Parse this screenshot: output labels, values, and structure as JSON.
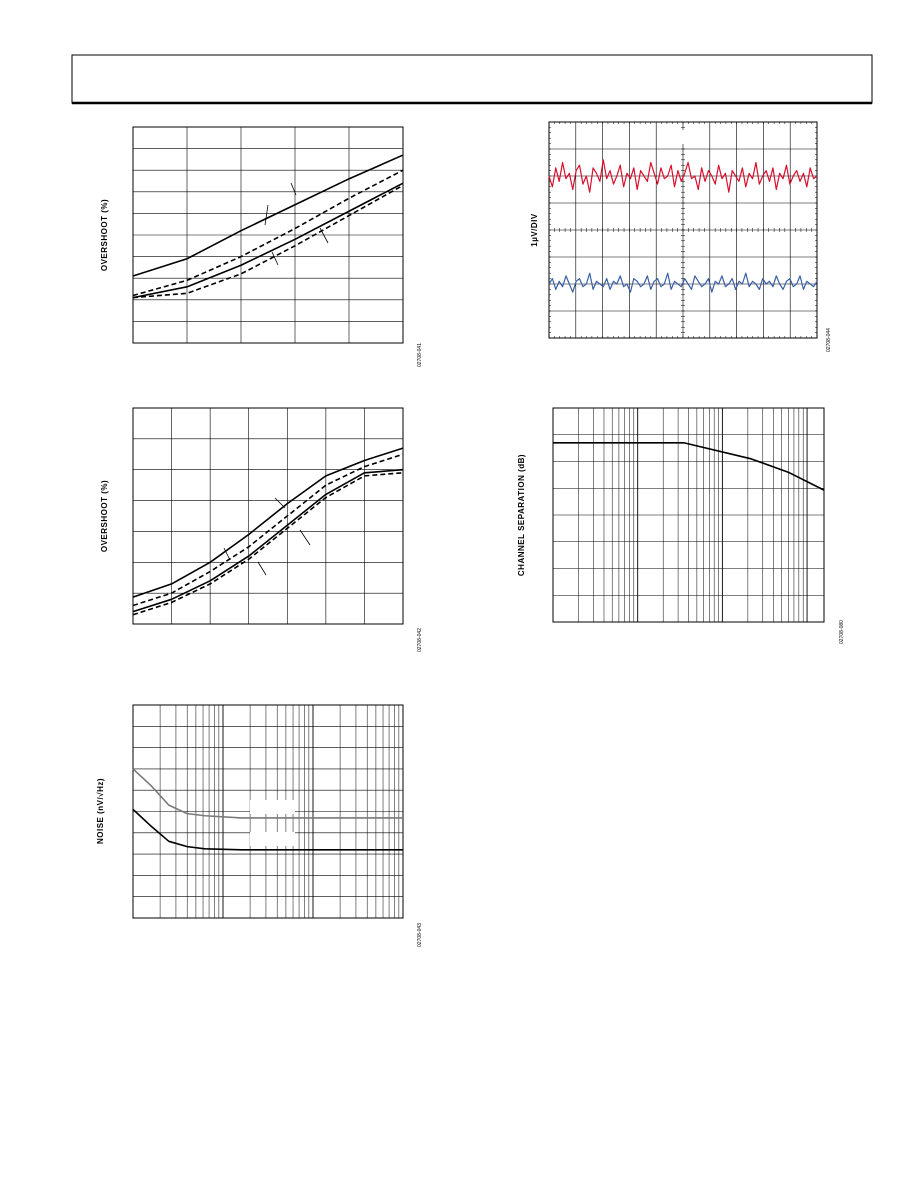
{
  "chart_data": [
    {
      "type": "line",
      "y_label": "OVERSHOOT (%)",
      "figure_code": "02708-041",
      "x": [
        0,
        1,
        2,
        3,
        4,
        5
      ],
      "xlim": [
        0,
        5
      ],
      "ylim": [
        0,
        10
      ],
      "grid": {
        "x": 5,
        "y": 10
      },
      "series": [
        {
          "color": "#000000",
          "dash": false,
          "values": [
            3.1,
            3.9,
            5.2,
            6.4,
            7.6,
            8.7
          ]
        },
        {
          "color": "#000000",
          "dash": true,
          "values": [
            2.2,
            2.9,
            4.0,
            5.3,
            6.7,
            8.0
          ]
        },
        {
          "color": "#000000",
          "dash": false,
          "values": [
            2.1,
            2.6,
            3.6,
            4.8,
            6.1,
            7.4
          ]
        },
        {
          "color": "#000000",
          "dash": true,
          "values": [
            2.1,
            2.3,
            3.2,
            4.5,
            5.9,
            7.3
          ]
        }
      ]
    },
    {
      "type": "line",
      "y_label": "1µV/DIV",
      "figure_code": "02708-044",
      "xlim": [
        0,
        10
      ],
      "ylim": [
        0,
        8
      ],
      "grid": {
        "x": 10,
        "y": 8
      },
      "series": [
        {
          "color": "#d8102e",
          "dash": false,
          "values": [
            6.0,
            5.6,
            6.3,
            5.8,
            6.5,
            5.9,
            6.1,
            5.5,
            6.2,
            6.4,
            5.7,
            6.0,
            5.4,
            6.3,
            6.1,
            5.8,
            6.6,
            5.9,
            6.2,
            5.7,
            6.0,
            6.4,
            5.6,
            6.1,
            5.9,
            6.3,
            5.5,
            6.2,
            6.0,
            5.8,
            6.5,
            6.1,
            5.7,
            6.3,
            5.9,
            6.0,
            6.4,
            5.6,
            6.2,
            5.8,
            6.1,
            6.5,
            5.9,
            6.0,
            5.5,
            6.3,
            5.8,
            6.2,
            6.0,
            5.7,
            6.4,
            5.9,
            6.1,
            5.4,
            6.2,
            6.0,
            5.8,
            6.3,
            5.6,
            6.1,
            5.9,
            6.5,
            5.7,
            6.0,
            6.2,
            5.8,
            6.3,
            5.5,
            6.1,
            5.9,
            6.4,
            5.7,
            6.0,
            6.2,
            5.8,
            6.1,
            5.6,
            6.3,
            5.9,
            6.0
          ]
        },
        {
          "color": "#3a5fa8",
          "dash": false,
          "values": [
            2.0,
            2.2,
            1.8,
            2.1,
            1.9,
            2.3,
            2.0,
            1.7,
            2.1,
            2.2,
            1.9,
            2.0,
            2.4,
            1.8,
            2.1,
            2.0,
            1.9,
            2.2,
            1.8,
            2.1,
            2.0,
            2.3,
            1.9,
            2.0,
            1.7,
            2.2,
            2.1,
            1.9,
            2.0,
            2.3,
            1.8,
            2.1,
            2.2,
            1.9,
            2.0,
            2.4,
            1.8,
            2.1,
            2.0,
            1.9,
            2.2,
            2.0,
            1.8,
            2.3,
            2.1,
            1.9,
            2.0,
            2.2,
            1.7,
            2.1,
            2.0,
            2.3,
            1.9,
            2.0,
            2.2,
            1.8,
            2.1,
            2.0,
            2.4,
            1.9,
            2.1,
            2.0,
            1.8,
            2.2,
            2.0,
            2.1,
            1.9,
            2.3,
            2.0,
            1.8,
            2.1,
            2.2,
            1.9,
            2.0,
            2.3,
            1.8,
            2.1,
            2.0,
            1.9,
            2.1
          ]
        }
      ]
    },
    {
      "type": "line",
      "y_label": "OVERSHOOT (%)",
      "figure_code": "02708-042",
      "x": [
        0,
        1,
        2,
        3,
        4,
        5,
        6,
        7
      ],
      "xlim": [
        0,
        7
      ],
      "ylim": [
        0,
        7
      ],
      "grid": {
        "x": 7,
        "y": 7
      },
      "series": [
        {
          "color": "#000000",
          "dash": false,
          "values": [
            0.87,
            1.3,
            2.0,
            2.9,
            3.9,
            4.8,
            5.3,
            5.7
          ]
        },
        {
          "color": "#000000",
          "dash": true,
          "values": [
            0.6,
            1.0,
            1.7,
            2.5,
            3.5,
            4.5,
            5.1,
            5.5
          ]
        },
        {
          "color": "#000000",
          "dash": false,
          "values": [
            0.4,
            0.8,
            1.4,
            2.2,
            3.2,
            4.2,
            4.9,
            5.0
          ]
        },
        {
          "color": "#000000",
          "dash": true,
          "values": [
            0.3,
            0.7,
            1.3,
            2.1,
            3.1,
            4.1,
            4.8,
            4.9
          ]
        }
      ]
    },
    {
      "type": "line",
      "y_label": "CHANNEL SEPARATION (dB)",
      "figure_code": "02708-080",
      "x": [
        1,
        10,
        35,
        218,
        600,
        1585
      ],
      "xlim": [
        1,
        1585
      ],
      "log_x": true,
      "ylim": [
        0,
        8
      ],
      "grid": {
        "y": 8
      },
      "series": [
        {
          "color": "#000000",
          "dash": false,
          "values": [
            6.7,
            6.7,
            6.7,
            6.1,
            5.6,
            4.93
          ]
        }
      ]
    },
    {
      "type": "line",
      "y_label": "NOISE (nV/√Hz)",
      "figure_code": "02708-043",
      "x": [
        1,
        1.6,
        2.5,
        4,
        6.3,
        16,
        40,
        160,
        1000
      ],
      "xlim": [
        1,
        1000
      ],
      "log_x": true,
      "ylim": [
        0,
        10
      ],
      "grid": {
        "y": 10
      },
      "series": [
        {
          "color": "#7a7a7a",
          "dash": false,
          "values": [
            7.0,
            6.2,
            5.3,
            4.9,
            4.8,
            4.7,
            4.7,
            4.7,
            4.7
          ]
        },
        {
          "color": "#000000",
          "dash": false,
          "values": [
            5.1,
            4.3,
            3.6,
            3.35,
            3.25,
            3.2,
            3.2,
            3.2,
            3.2
          ]
        }
      ]
    }
  ]
}
